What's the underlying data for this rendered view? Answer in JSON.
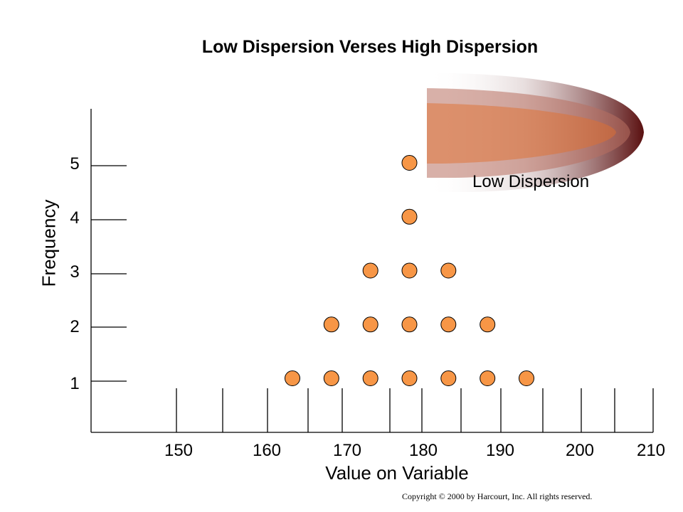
{
  "chart_data": {
    "type": "scatter",
    "title": "Low Dispersion Verses High Dispersion",
    "xlabel": "Value on Variable",
    "ylabel": "Frequency",
    "x_ticks": [
      "150",
      "160",
      "170",
      "180",
      "190",
      "200",
      "210"
    ],
    "y_ticks": [
      "1",
      "2",
      "3",
      "4",
      "5"
    ],
    "xlim": [
      145,
      210
    ],
    "ylim": [
      0,
      5
    ],
    "annotation": "Low Dispersion",
    "marker_color": "#f79646",
    "points": [
      {
        "x": 165,
        "y": 1
      },
      {
        "x": 170,
        "y": 1
      },
      {
        "x": 175,
        "y": 1
      },
      {
        "x": 180,
        "y": 1
      },
      {
        "x": 185,
        "y": 1
      },
      {
        "x": 190,
        "y": 1
      },
      {
        "x": 195,
        "y": 1
      },
      {
        "x": 170,
        "y": 2
      },
      {
        "x": 175,
        "y": 2
      },
      {
        "x": 180,
        "y": 2
      },
      {
        "x": 185,
        "y": 2
      },
      {
        "x": 190,
        "y": 2
      },
      {
        "x": 175,
        "y": 3
      },
      {
        "x": 180,
        "y": 3
      },
      {
        "x": 185,
        "y": 3
      },
      {
        "x": 180,
        "y": 4
      },
      {
        "x": 180,
        "y": 5
      }
    ]
  },
  "copyright": "Copyright © 2000 by Harcourt, Inc.  All rights reserved."
}
